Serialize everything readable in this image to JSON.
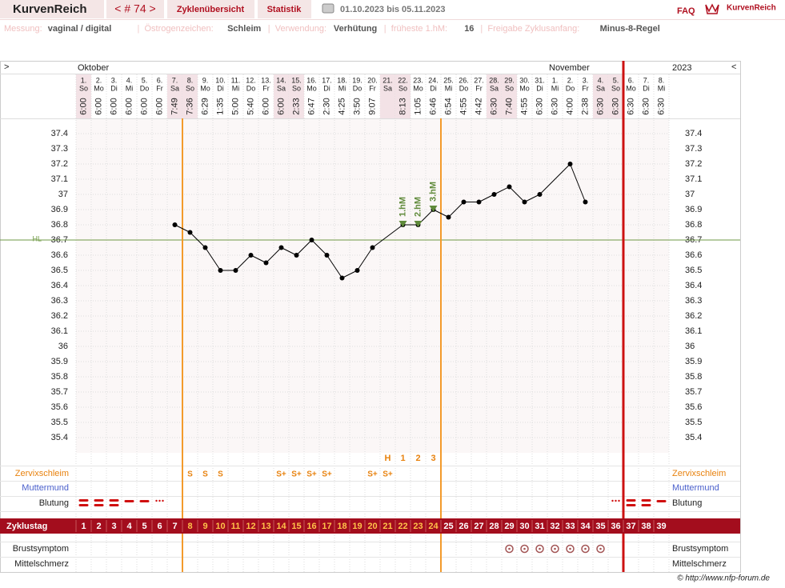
{
  "header": {
    "brand": "KurvenReich",
    "cycle_nav": "< # 74 >",
    "tabs": [
      "Zyklenübersicht",
      "Statistik"
    ],
    "date_range": "01.10.2023 bis 05.11.2023",
    "faq": "FAQ",
    "logo": "KurvenReich"
  },
  "info": {
    "separator": "|",
    "items": [
      {
        "label": "Messung:",
        "value": "vaginal / digital"
      },
      {
        "label": "Östrogenzeichen:",
        "value": "Schleim"
      },
      {
        "label": "Verwendung:",
        "value": "Verhütung"
      },
      {
        "label": "früheste 1.hM:",
        "value": "16"
      },
      {
        "label": "Freigabe Zyklusanfang:",
        "value": "Minus-8-Regel"
      }
    ]
  },
  "chart_data": {
    "type": "line",
    "nav_left": ">",
    "nav_right": "<",
    "months": [
      "Oktober",
      "November"
    ],
    "year": "2023",
    "categories": [
      "1.",
      "2.",
      "3.",
      "4.",
      "5.",
      "6.",
      "7.",
      "8.",
      "9.",
      "10.",
      "11.",
      "12.",
      "13.",
      "14.",
      "15.",
      "16.",
      "17.",
      "18.",
      "19.",
      "20.",
      "21.",
      "22.",
      "23.",
      "24.",
      "25.",
      "26.",
      "27.",
      "28.",
      "29.",
      "30.",
      "31.",
      "1.",
      "2.",
      "3.",
      "4.",
      "5.",
      "6.",
      "7.",
      "8."
    ],
    "weekdays": [
      "So",
      "Mo",
      "Di",
      "Mi",
      "Do",
      "Fr",
      "Sa",
      "So",
      "Mo",
      "Di",
      "Mi",
      "Do",
      "Fr",
      "Sa",
      "So",
      "Mo",
      "Di",
      "Mi",
      "Do",
      "Fr",
      "Sa",
      "So",
      "Mo",
      "Di",
      "Mi",
      "Do",
      "Fr",
      "Sa",
      "So",
      "Mo",
      "Di",
      "Mi",
      "Do",
      "Fr",
      "Sa",
      "So",
      "Mo",
      "Di",
      "Mi"
    ],
    "times": [
      "6:00",
      "6:00",
      "6:00",
      "6:00",
      "6:00",
      "6:00",
      "7:49",
      "7:36",
      "6:29",
      "1:35",
      "5:00",
      "5:40",
      "6:00",
      "6:00",
      "2:33",
      "6:47",
      "2:30",
      "4:25",
      "3:50",
      "9:07",
      null,
      "8:13",
      "1:05",
      "6:46",
      "6:54",
      "4:55",
      "4:42",
      "6:30",
      "7:40",
      "4:55",
      "6:30",
      "6:30",
      "4:00",
      "2:38",
      "6:30",
      "6:30",
      "6:30",
      "6:30",
      "6:30"
    ],
    "values": [
      null,
      null,
      null,
      null,
      null,
      null,
      36.8,
      36.75,
      36.65,
      36.5,
      36.5,
      36.6,
      36.55,
      36.65,
      36.6,
      36.7,
      36.6,
      36.45,
      36.5,
      36.65,
      null,
      36.8,
      36.8,
      36.9,
      36.85,
      36.95,
      36.95,
      37.0,
      37.05,
      36.95,
      37.0,
      null,
      37.2,
      36.95,
      null,
      null,
      null,
      null,
      null
    ],
    "color": "#000000",
    "ylim": [
      35.3,
      37.5
    ],
    "yticks": [
      35.4,
      35.5,
      35.6,
      35.7,
      35.8,
      35.9,
      36,
      36.1,
      36.2,
      36.3,
      36.4,
      36.5,
      36.6,
      36.7,
      36.8,
      36.9,
      37,
      37.1,
      37.2,
      37.3,
      37.4
    ],
    "grid": true,
    "hl": {
      "label": "HL",
      "value": 36.7,
      "color": "#6f9a45"
    },
    "hm_labels": [
      null,
      null,
      null,
      null,
      null,
      null,
      null,
      null,
      null,
      null,
      null,
      null,
      null,
      null,
      null,
      null,
      null,
      null,
      null,
      null,
      null,
      "1.hM",
      "2.hM",
      "3.hM",
      null,
      null,
      null,
      null,
      null,
      null,
      null,
      null,
      null,
      null,
      null,
      null,
      null,
      null,
      null
    ],
    "h_row": [
      null,
      null,
      null,
      null,
      null,
      null,
      null,
      null,
      null,
      null,
      null,
      null,
      null,
      null,
      null,
      null,
      null,
      null,
      null,
      null,
      "H",
      "1",
      "2",
      "3",
      null,
      null,
      null,
      null,
      null,
      null,
      null,
      null,
      null,
      null,
      null,
      null,
      null,
      null,
      null
    ],
    "zervixschleim": [
      null,
      null,
      null,
      null,
      null,
      null,
      null,
      "S",
      "S",
      "S",
      null,
      null,
      null,
      "S+",
      "S+",
      "S+",
      "S+",
      null,
      null,
      "S+",
      "S+",
      null,
      null,
      null,
      null,
      null,
      null,
      null,
      null,
      null,
      null,
      null,
      null,
      null,
      null,
      null,
      null,
      null,
      null
    ],
    "cycle_days": [
      1,
      2,
      3,
      4,
      5,
      6,
      7,
      8,
      9,
      10,
      11,
      12,
      13,
      14,
      15,
      16,
      17,
      18,
      19,
      20,
      21,
      22,
      23,
      24,
      25,
      26,
      27,
      28,
      29,
      30,
      31,
      32,
      33,
      34,
      35,
      36,
      37,
      38,
      39
    ],
    "rows": {
      "zervixschleim": "Zervixschleim",
      "muttermund": "Muttermund",
      "blutung": "Blutung",
      "zyklustag": "Zyklustag",
      "brustsymptom": "Brustsymptom",
      "mittelschmerz": "Mittelschmerz"
    }
  },
  "footer": "© http://www.nfp-forum.de"
}
